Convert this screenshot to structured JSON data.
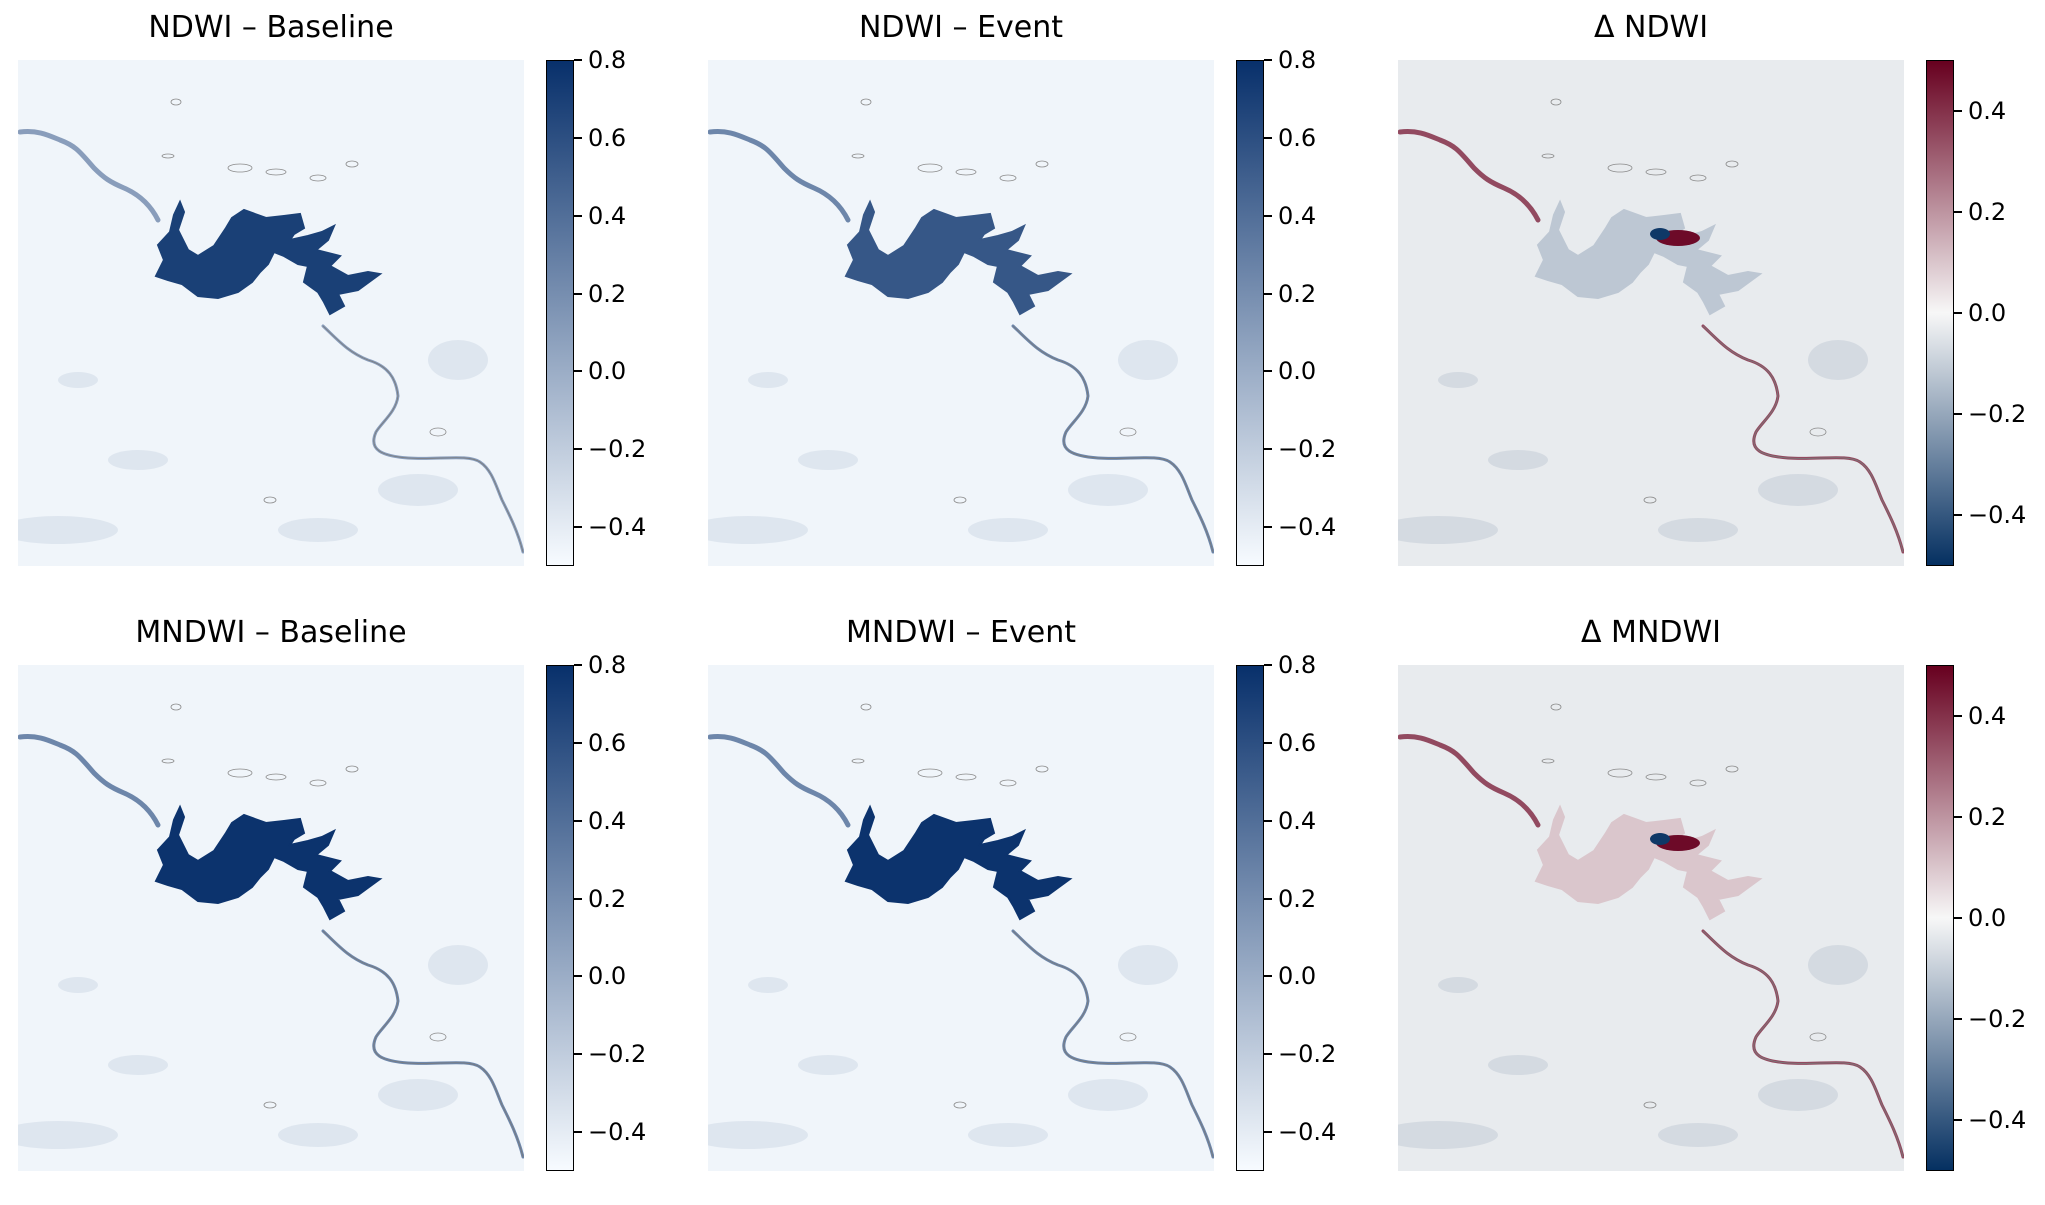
{
  "chart_data": [
    {
      "type": "heatmap",
      "title": "NDWI – Baseline",
      "colormap": "Blues",
      "colors": [
        "#f7fbff",
        "#08306b"
      ],
      "vmin": -0.5,
      "vmax": 0.8,
      "colorbar_ticks": [
        0.8,
        0.6,
        0.4,
        0.2,
        0.0,
        -0.2,
        -0.4
      ],
      "colorbar_labels": [
        "0.8",
        "0.6",
        "0.4",
        "0.2",
        "0.0",
        "−0.2",
        "−0.4"
      ],
      "axes": "off"
    },
    {
      "type": "heatmap",
      "title": "NDWI – Event",
      "colormap": "Blues",
      "colors": [
        "#f7fbff",
        "#08306b"
      ],
      "vmin": -0.5,
      "vmax": 0.8,
      "colorbar_ticks": [
        0.8,
        0.6,
        0.4,
        0.2,
        0.0,
        -0.2,
        -0.4
      ],
      "colorbar_labels": [
        "0.8",
        "0.6",
        "0.4",
        "0.2",
        "0.0",
        "−0.2",
        "−0.4"
      ],
      "axes": "off"
    },
    {
      "type": "heatmap",
      "title": "Δ NDWI",
      "colormap": "RdBu_r",
      "colors": [
        "#053061",
        "#f7f7f7",
        "#67001f"
      ],
      "vmin": -0.5,
      "vmax": 0.5,
      "colorbar_ticks": [
        0.4,
        0.2,
        0.0,
        -0.2,
        -0.4
      ],
      "colorbar_labels": [
        "0.4",
        "0.2",
        "0.0",
        "−0.2",
        "−0.4"
      ],
      "axes": "off"
    },
    {
      "type": "heatmap",
      "title": "MNDWI – Baseline",
      "colormap": "Blues",
      "colors": [
        "#f7fbff",
        "#08306b"
      ],
      "vmin": -0.5,
      "vmax": 0.8,
      "colorbar_ticks": [
        0.8,
        0.6,
        0.4,
        0.2,
        0.0,
        -0.2,
        -0.4
      ],
      "colorbar_labels": [
        "0.8",
        "0.6",
        "0.4",
        "0.2",
        "0.0",
        "−0.2",
        "−0.4"
      ],
      "axes": "off"
    },
    {
      "type": "heatmap",
      "title": "MNDWI – Event",
      "colormap": "Blues",
      "colors": [
        "#f7fbff",
        "#08306b"
      ],
      "vmin": -0.5,
      "vmax": 0.8,
      "colorbar_ticks": [
        0.8,
        0.6,
        0.4,
        0.2,
        0.0,
        -0.2,
        -0.4
      ],
      "colorbar_labels": [
        "0.8",
        "0.6",
        "0.4",
        "0.2",
        "0.0",
        "−0.2",
        "−0.4"
      ],
      "axes": "off"
    },
    {
      "type": "heatmap",
      "title": "Δ MNDWI",
      "colormap": "RdBu_r",
      "colors": [
        "#053061",
        "#f7f7f7",
        "#67001f"
      ],
      "vmin": -0.5,
      "vmax": 0.5,
      "colorbar_ticks": [
        0.4,
        0.2,
        0.0,
        -0.2,
        -0.4
      ],
      "colorbar_labels": [
        "0.4",
        "0.2",
        "0.0",
        "−0.2",
        "−0.4"
      ],
      "axes": "off"
    }
  ]
}
